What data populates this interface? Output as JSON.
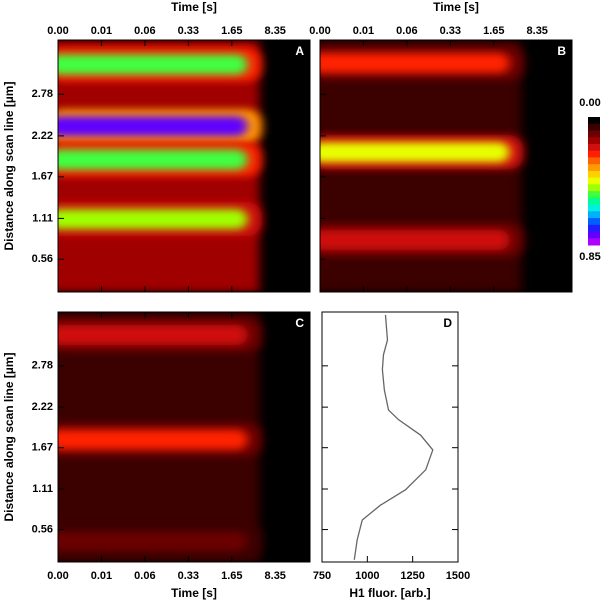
{
  "chart_data": [
    {
      "type": "heatmap",
      "label": "A",
      "x_label": "Time [s]",
      "y_label": "Distance along scan line [µm]",
      "xticks": [
        "0.00",
        "0.01",
        "0.06",
        "0.33",
        "1.65",
        "8.35"
      ],
      "ylim": [
        0.12,
        3.51
      ],
      "yticks": [
        0.56,
        1.11,
        1.67,
        2.22,
        2.78
      ],
      "background": 0.12,
      "bands": [
        {
          "y": 3.18,
          "value": 0.5
        },
        {
          "y": 2.35,
          "value": 0.78
        },
        {
          "y": 1.9,
          "value": 0.5
        },
        {
          "y": 1.1,
          "value": 0.45
        }
      ]
    },
    {
      "type": "heatmap",
      "label": "B",
      "x_label": "Time [s]",
      "xticks": [
        "0.00",
        "0.01",
        "0.06",
        "0.33",
        "1.65",
        "8.35"
      ],
      "ylim": [
        0.12,
        3.51
      ],
      "yticks": [
        0.56,
        1.11,
        1.67,
        2.22,
        2.78
      ],
      "ytick_labels": false,
      "background": 0.06,
      "bands": [
        {
          "y": 3.2,
          "value": 0.25
        },
        {
          "y": 2.0,
          "value": 0.42
        },
        {
          "y": 0.82,
          "value": 0.2
        }
      ],
      "colorbar": {
        "lim": [
          0,
          0.85
        ],
        "ticks": [
          {
            "value": 0,
            "label": "0.00"
          },
          0.85
        ],
        "colors": [
          "#000000",
          "#3a0000",
          "#6a0000",
          "#a00000",
          "#d01010",
          "#ff2000",
          "#ff6000",
          "#ff9a00",
          "#ffd000",
          "#e8ff00",
          "#a0ff00",
          "#40ff40",
          "#00ff90",
          "#00f0e0",
          "#00b0ff",
          "#0060ff",
          "#2020ff",
          "#6000ff",
          "#b000ff"
        ]
      }
    },
    {
      "type": "heatmap",
      "label": "C",
      "x_label": "Time [s]",
      "y_label": "Distance along scan line [µm]",
      "xticks": [
        "0.00",
        "0.01",
        "0.06",
        "0.33",
        "1.65",
        "8.35"
      ],
      "ylim": [
        0.12,
        3.51
      ],
      "yticks": [
        0.56,
        1.11,
        1.67,
        2.22,
        2.78
      ],
      "background": 0.03,
      "bands": [
        {
          "y": 3.2,
          "value": 0.18
        },
        {
          "y": 1.78,
          "value": 0.25
        },
        {
          "y": 0.4,
          "value": 0.08
        }
      ]
    },
    {
      "type": "line",
      "label": "D",
      "x_label": "H1 fluor. [arb.]",
      "color": "#666666",
      "xlim": [
        750,
        1500
      ],
      "xticks": [
        750,
        1000,
        1250,
        1500
      ],
      "ylim": [
        0.12,
        3.51
      ],
      "yticks": [
        0.56,
        1.11,
        1.67,
        2.22,
        2.78
      ],
      "ytick_labels": false,
      "y": [
        3.47,
        3.13,
        2.93,
        2.73,
        2.45,
        2.18,
        2.05,
        1.84,
        1.64,
        1.37,
        1.1,
        0.89,
        0.69,
        0.42,
        0.15
      ],
      "values": [
        1100,
        1111,
        1089,
        1083,
        1094,
        1117,
        1172,
        1294,
        1361,
        1322,
        1211,
        1072,
        972,
        944,
        928
      ]
    }
  ]
}
